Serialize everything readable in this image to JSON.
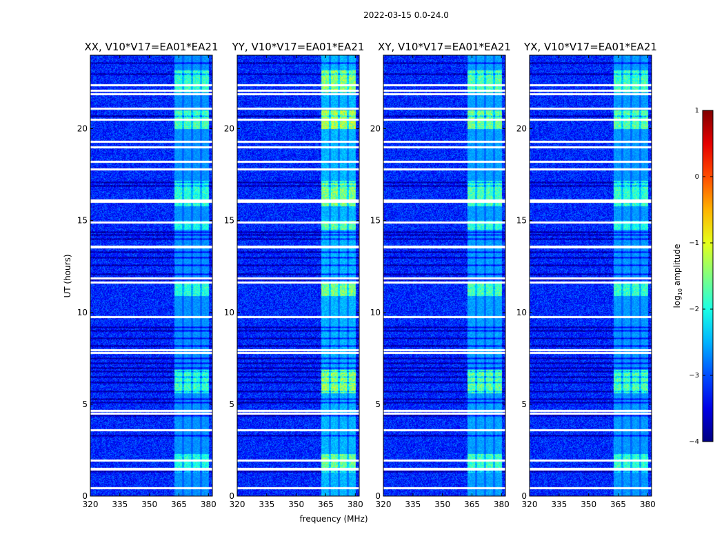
{
  "chart_data": {
    "type": "heatmap",
    "title": "2022-03-15 0.0-24.0",
    "xlabel": "frequency (MHz)",
    "ylabel": "UT (hours)",
    "xlim": [
      320,
      382
    ],
    "ylim": [
      0,
      24
    ],
    "x_ticks": [
      "320",
      "335",
      "350",
      "365",
      "380"
    ],
    "x_tick_values": [
      320,
      335,
      350,
      365,
      380
    ],
    "y_ticks": [
      "0",
      "5",
      "10",
      "15",
      "20"
    ],
    "y_tick_values": [
      0,
      5,
      10,
      15,
      20
    ],
    "panels": [
      {
        "name": "XX",
        "title": "XX, V10*V17=EA01*EA21",
        "rfi_strength": 0.75,
        "band_drift_MHz": 0
      },
      {
        "name": "YY",
        "title": "YY, V10*V17=EA01*EA21",
        "rfi_strength": 1.0,
        "band_drift_MHz": 0
      },
      {
        "name": "XY",
        "title": "XY, V10*V17=EA01*EA21",
        "rfi_strength": 0.85,
        "band_drift_MHz": 0
      },
      {
        "name": "YX",
        "title": "YX, V10*V17=EA01*EA21",
        "rfi_strength": 0.8,
        "band_drift_MHz": 0
      }
    ],
    "rfi_band_MHz": [
      362.5,
      380
    ],
    "rfi_subbands_MHz": [
      [
        362.5,
        366.5
      ],
      [
        367.5,
        371
      ],
      [
        372,
        375.5
      ],
      [
        376.5,
        380
      ]
    ],
    "background_log10_amplitude": -3.2,
    "rfi_peak_log10_amplitude": -1.2,
    "flagged_white_hours": [
      0.45,
      1.45,
      1.5,
      1.95,
      3.6,
      4.5,
      4.65,
      7.8,
      7.95,
      9.75,
      11.65,
      11.85,
      13.55,
      13.6,
      14.9,
      16.05,
      16.1,
      17.8,
      18.2,
      19.0,
      19.3,
      20.5,
      21.1,
      21.9,
      22.1,
      22.4
    ],
    "dark_hours": [
      1.35,
      3.3,
      4.4,
      5.1,
      5.3,
      5.7,
      6.2,
      6.5,
      6.8,
      7.0,
      7.25,
      7.5,
      8.2,
      8.6,
      9.0,
      9.2,
      11.8,
      12.1,
      12.6,
      13.0,
      13.3,
      14.0,
      14.25,
      14.4,
      16.9,
      17.1,
      20.7,
      23.0,
      23.6
    ],
    "colorbar": {
      "label": "log10 amplitude",
      "label_base": "log",
      "label_sub": "10",
      "label_rest": " amplitude",
      "range": [
        -4,
        1
      ],
      "ticks": [
        "1",
        "0",
        "−1",
        "−2",
        "−3",
        "−4"
      ],
      "tick_values": [
        1,
        0,
        -1,
        -2,
        -3,
        -4
      ],
      "colormap": "jet"
    }
  }
}
